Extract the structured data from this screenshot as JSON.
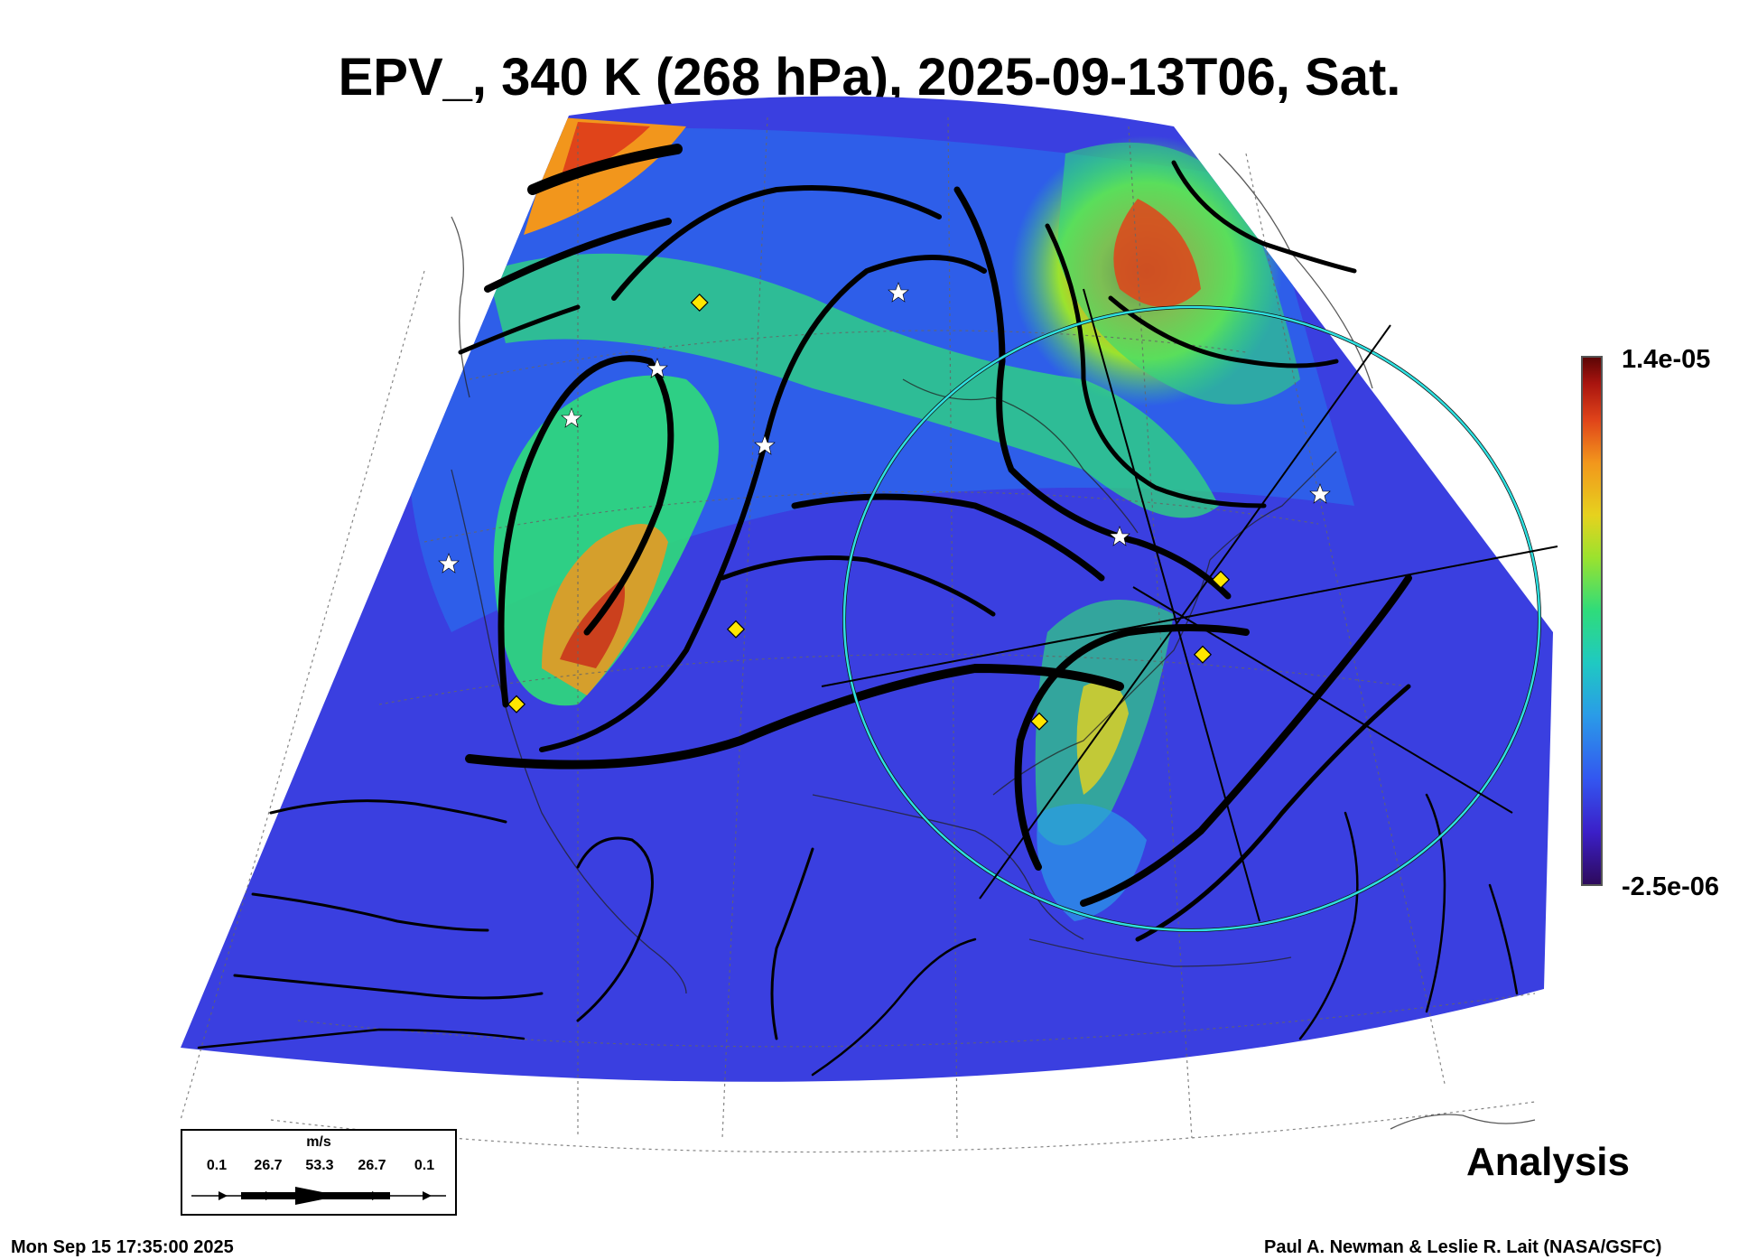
{
  "title": "EPV_, 340 K (268 hPa), 2025-09-13T06, Sat.",
  "colorbar": {
    "max_label": "1.4e-05",
    "min_label": "-2.5e-06",
    "colors": [
      "#2d0a5a",
      "#3b1fc8",
      "#3356f0",
      "#2a9be8",
      "#1fc9c2",
      "#2fdc7a",
      "#9be22e",
      "#e6d21e",
      "#f2961c",
      "#e0441a",
      "#a8140f",
      "#5a0505"
    ]
  },
  "legend": {
    "unit": "m/s",
    "values": [
      "0.1",
      "26.7",
      "53.3",
      "26.7",
      "0.1"
    ]
  },
  "label_analysis": "Analysis",
  "footer": {
    "timestamp": "Mon Sep 15 17:35:00 2025",
    "credit": "Paul A. Newman & Leslie R. Lait (NASA/GSFC)"
  },
  "map": {
    "region": "North America",
    "field": "EPV_",
    "markers": "yellow diamonds and white stars",
    "overlay": "cyan circle with cross-section lines"
  }
}
